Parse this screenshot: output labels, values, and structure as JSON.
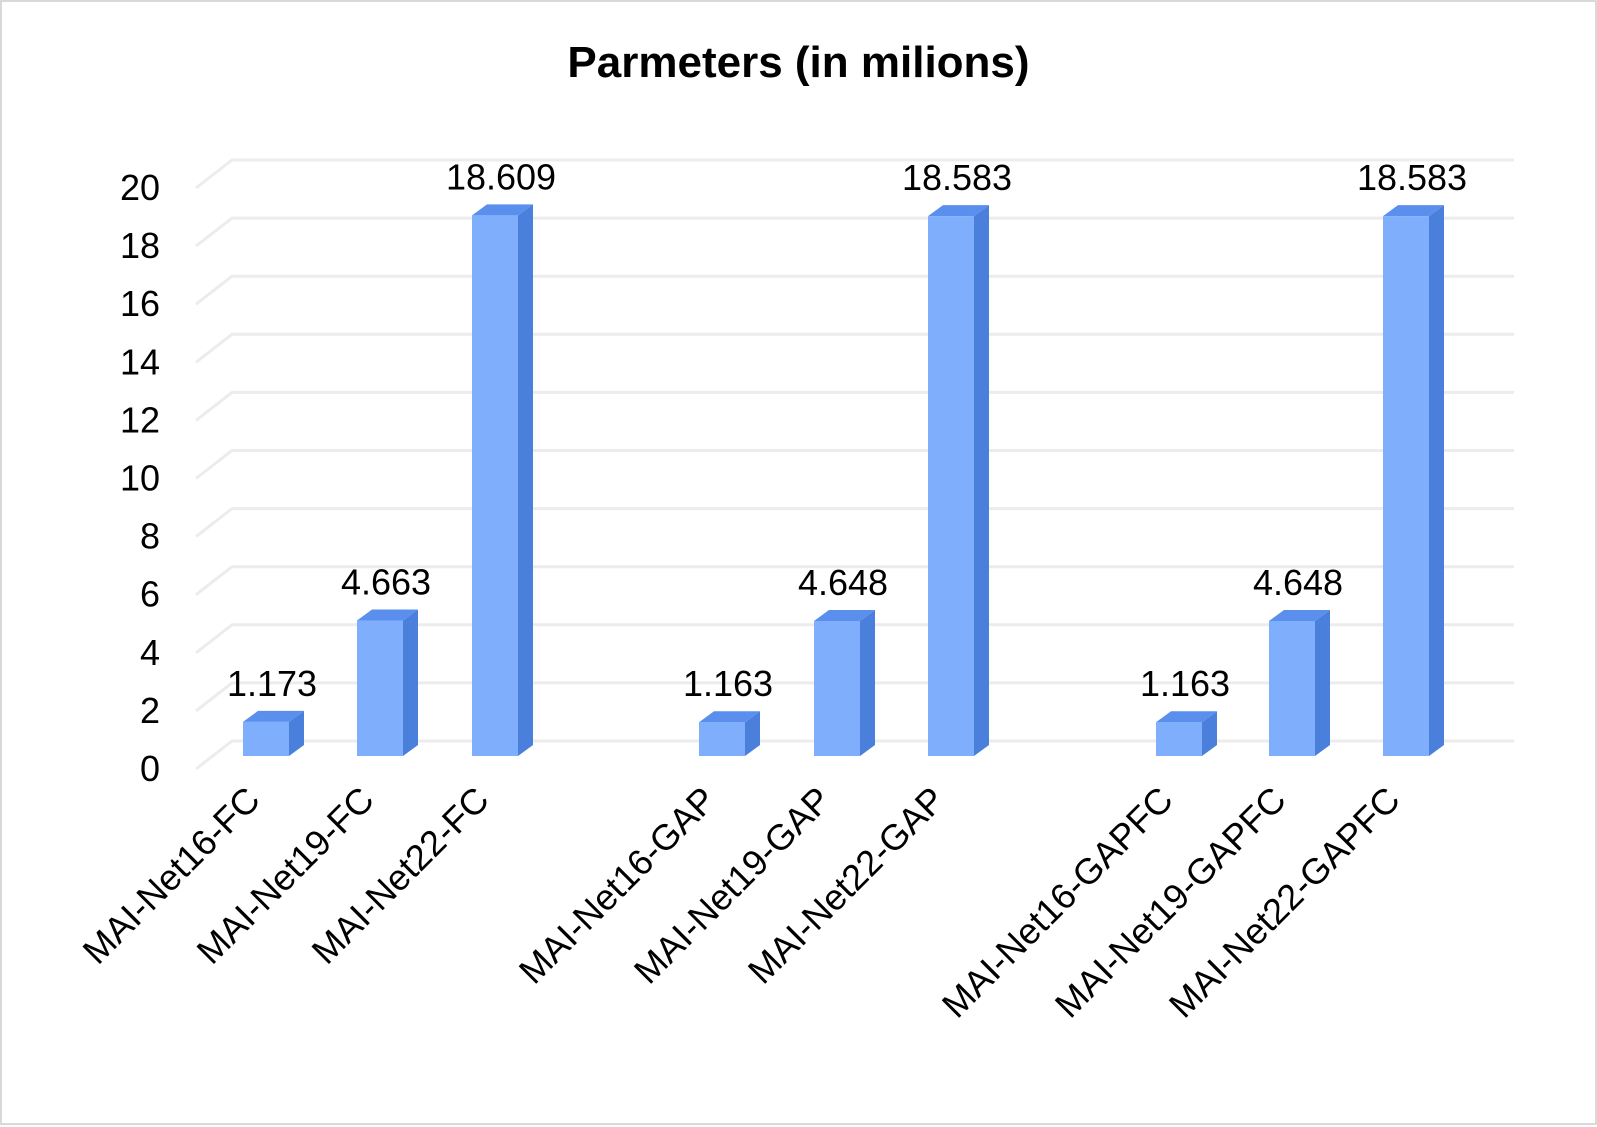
{
  "chart_data": {
    "type": "bar",
    "title": "Parmeters (in milions)",
    "xlabel": "",
    "ylabel": "",
    "ylim": [
      0,
      20
    ],
    "yticks": [
      0,
      2,
      4,
      6,
      8,
      10,
      12,
      14,
      16,
      18,
      20
    ],
    "grid": true,
    "legend": "none",
    "categories": [
      "MAI-Net16-FC",
      "MAI-Net19-FC",
      "MAI-Net22-FC",
      "MAI-Net16-GAP",
      "MAI-Net19-GAP",
      "MAI-Net22-GAP",
      "MAI-Net16-GAPFC",
      "MAI-Net19-GAPFC",
      "MAI-Net22-GAPFC"
    ],
    "values": [
      1.173,
      4.663,
      18.609,
      1.163,
      4.648,
      18.583,
      1.163,
      4.648,
      18.583
    ],
    "value_labels": [
      "1.173",
      "4.663",
      "18.609",
      "1.163",
      "4.648",
      "18.583",
      "1.163",
      "4.648",
      "18.583"
    ],
    "colors": {
      "bar_front": "#7faefc",
      "bar_side": "#4a7fdc",
      "bar_top": "#5a8fee",
      "grid": "#ececec",
      "text": "#000000"
    }
  }
}
